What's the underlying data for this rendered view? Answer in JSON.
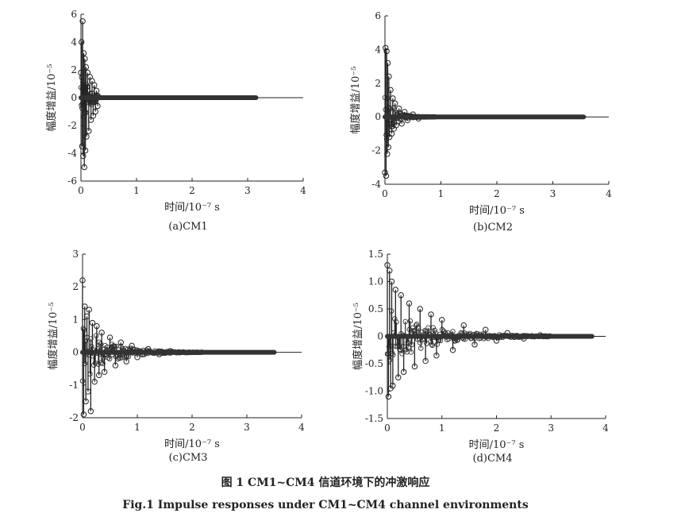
{
  "figure": {
    "caption_cn": "图 1    CM1~CM4 信道环境下的冲激响应",
    "caption_en": "Fig.1    Impulse responses under CM1~CM4 channel environments"
  },
  "chart_data": [
    {
      "type": "stem",
      "subcaption": "(a)CM1",
      "xlabel": "时间/10⁻⁷ s",
      "ylabel": "幅度增益/10⁻⁵",
      "xlim": [
        0,
        4
      ],
      "ylim": [
        -6,
        6
      ],
      "xticks": [
        0,
        1,
        2,
        3,
        4
      ],
      "yticks": [
        -6,
        -4,
        -2,
        0,
        2,
        4,
        6
      ],
      "baseline_end": 3.15,
      "x": [
        0.0,
        0.01,
        0.02,
        0.03,
        0.04,
        0.05,
        0.06,
        0.07,
        0.08,
        0.09,
        0.1,
        0.12,
        0.14,
        0.16,
        0.18,
        0.2,
        0.22,
        0.24,
        0.26,
        0.28,
        0.3
      ],
      "y": [
        1.8,
        4.0,
        -3.5,
        5.5,
        -4.2,
        3.2,
        -5.0,
        2.8,
        -3.8,
        2.2,
        -2.8,
        1.8,
        -2.4,
        1.5,
        -1.6,
        1.2,
        -1.3,
        0.9,
        -1.0,
        0.5,
        -0.6
      ]
    },
    {
      "type": "stem",
      "subcaption": "(b)CM2",
      "xlabel": "时间/10⁻⁷ s",
      "ylabel": "幅度增益/10⁻⁵",
      "xlim": [
        0,
        4
      ],
      "ylim": [
        -4,
        6
      ],
      "xticks": [
        0,
        1,
        2,
        3,
        4
      ],
      "yticks": [
        -4,
        -2,
        0,
        2,
        4,
        6
      ],
      "baseline_end": 3.55,
      "x": [
        0.0,
        0.01,
        0.02,
        0.03,
        0.04,
        0.05,
        0.06,
        0.07,
        0.08,
        0.1,
        0.12,
        0.14,
        0.16,
        0.18,
        0.2,
        0.25,
        0.3,
        0.35,
        0.4,
        0.5,
        0.6
      ],
      "y": [
        -3.3,
        4.1,
        -3.5,
        3.9,
        -2.2,
        3.2,
        -1.8,
        2.4,
        -1.2,
        1.6,
        -1.0,
        1.1,
        -0.7,
        0.8,
        -0.5,
        0.5,
        -0.4,
        0.3,
        -0.2,
        0.15,
        -0.1
      ]
    },
    {
      "type": "stem",
      "subcaption": "(c)CM3",
      "xlabel": "时间/10⁻⁷ s",
      "ylabel": "幅度增益/10⁻⁵",
      "xlim": [
        0,
        4
      ],
      "ylim": [
        -2,
        3
      ],
      "xticks": [
        0,
        1,
        2,
        3,
        4
      ],
      "yticks": [
        -2,
        -1,
        0,
        1,
        2,
        3
      ],
      "baseline_end": 3.5,
      "x": [
        0.0,
        0.02,
        0.04,
        0.06,
        0.08,
        0.1,
        0.12,
        0.15,
        0.18,
        0.22,
        0.26,
        0.3,
        0.35,
        0.4,
        0.5,
        0.6,
        0.7,
        0.8,
        0.9,
        1.0,
        1.2,
        1.4,
        1.6
      ],
      "y": [
        2.2,
        -1.9,
        1.4,
        -1.5,
        1.1,
        -1.2,
        1.3,
        -1.8,
        0.9,
        -0.9,
        0.8,
        -0.7,
        0.6,
        -0.6,
        0.45,
        -0.4,
        0.3,
        -0.28,
        0.2,
        -0.15,
        0.1,
        -0.06,
        0.04
      ]
    },
    {
      "type": "stem",
      "subcaption": "(d)CM4",
      "xlabel": "时间/10⁻⁷ s",
      "ylabel": "幅度增益/10⁻⁵",
      "xlim": [
        0,
        4
      ],
      "ylim": [
        -1.5,
        1.5
      ],
      "xticks": [
        0,
        1,
        2,
        3,
        4
      ],
      "yticks": [
        -1.5,
        -1,
        -0.5,
        0,
        0.5,
        1,
        1.5
      ],
      "ytick_labels": [
        "-1.5",
        "-1.0",
        "-0.5",
        "0",
        "0.5",
        "1.0",
        "1.5"
      ],
      "baseline_end": 3.75,
      "x": [
        0.0,
        0.02,
        0.04,
        0.06,
        0.08,
        0.1,
        0.15,
        0.2,
        0.25,
        0.3,
        0.4,
        0.5,
        0.6,
        0.7,
        0.8,
        0.9,
        1.0,
        1.2,
        1.4,
        1.6,
        1.8,
        2.0,
        2.2,
        2.5,
        2.8
      ],
      "y": [
        1.3,
        -1.1,
        1.2,
        -0.95,
        1.0,
        -0.9,
        0.85,
        -0.75,
        0.75,
        -0.65,
        0.6,
        -0.55,
        0.5,
        -0.45,
        0.4,
        -0.35,
        0.3,
        -0.25,
        0.2,
        -0.15,
        0.12,
        -0.08,
        0.06,
        -0.04,
        0.02
      ]
    }
  ]
}
